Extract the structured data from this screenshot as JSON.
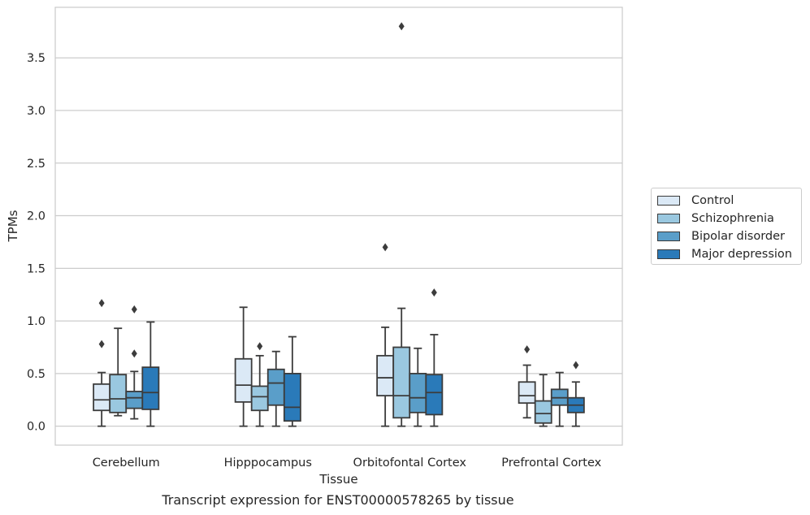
{
  "chart_data": {
    "type": "box",
    "xlabel": "Tissue",
    "ylabel": "TPMs",
    "ylim": [
      -0.18,
      3.98
    ],
    "yticks": [
      "0.0",
      "0.5",
      "1.0",
      "1.5",
      "2.0",
      "2.5",
      "3.0",
      "3.5"
    ],
    "grid": true,
    "legend_position": "right",
    "categories": [
      "Cerebellum",
      "Hipppocampus",
      "Orbitofontal Cortex",
      "Prefrontal Cortex"
    ],
    "series": [
      {
        "name": "Control",
        "color": "#dbe9f6",
        "boxes": [
          {
            "whislo": 0.0,
            "q1": 0.15,
            "median": 0.25,
            "q3": 0.4,
            "whishi": 0.51,
            "fliers": [
              0.78,
              1.17
            ]
          },
          {
            "whislo": 0.0,
            "q1": 0.23,
            "median": 0.39,
            "q3": 0.64,
            "whishi": 1.13,
            "fliers": []
          },
          {
            "whislo": 0.0,
            "q1": 0.29,
            "median": 0.46,
            "q3": 0.67,
            "whishi": 0.94,
            "fliers": [
              1.7
            ]
          },
          {
            "whislo": 0.08,
            "q1": 0.22,
            "median": 0.29,
            "q3": 0.42,
            "whishi": 0.58,
            "fliers": [
              0.73
            ]
          }
        ]
      },
      {
        "name": "Schizophrenia",
        "color": "#9ac8e0",
        "boxes": [
          {
            "whislo": 0.1,
            "q1": 0.13,
            "median": 0.26,
            "q3": 0.49,
            "whishi": 0.93,
            "fliers": []
          },
          {
            "whislo": 0.0,
            "q1": 0.15,
            "median": 0.28,
            "q3": 0.38,
            "whishi": 0.67,
            "fliers": [
              0.76
            ]
          },
          {
            "whislo": 0.0,
            "q1": 0.08,
            "median": 0.29,
            "q3": 0.75,
            "whishi": 1.12,
            "fliers": [
              3.8
            ]
          },
          {
            "whislo": 0.0,
            "q1": 0.03,
            "median": 0.12,
            "q3": 0.24,
            "whishi": 0.49,
            "fliers": []
          }
        ]
      },
      {
        "name": "Bipolar disorder",
        "color": "#5a9ec9",
        "boxes": [
          {
            "whislo": 0.07,
            "q1": 0.17,
            "median": 0.27,
            "q3": 0.33,
            "whishi": 0.52,
            "fliers": [
              0.69,
              1.11
            ]
          },
          {
            "whislo": 0.0,
            "q1": 0.2,
            "median": 0.41,
            "q3": 0.54,
            "whishi": 0.71,
            "fliers": []
          },
          {
            "whislo": 0.0,
            "q1": 0.13,
            "median": 0.27,
            "q3": 0.5,
            "whishi": 0.74,
            "fliers": []
          },
          {
            "whislo": 0.0,
            "q1": 0.2,
            "median": 0.27,
            "q3": 0.35,
            "whishi": 0.51,
            "fliers": []
          }
        ]
      },
      {
        "name": "Major depression",
        "color": "#2a7ab9",
        "boxes": [
          {
            "whislo": 0.0,
            "q1": 0.16,
            "median": 0.32,
            "q3": 0.56,
            "whishi": 0.99,
            "fliers": []
          },
          {
            "whislo": 0.0,
            "q1": 0.05,
            "median": 0.18,
            "q3": 0.5,
            "whishi": 0.85,
            "fliers": []
          },
          {
            "whislo": 0.0,
            "q1": 0.11,
            "median": 0.32,
            "q3": 0.49,
            "whishi": 0.87,
            "fliers": [
              1.27
            ]
          },
          {
            "whislo": 0.0,
            "q1": 0.13,
            "median": 0.2,
            "q3": 0.27,
            "whishi": 0.42,
            "fliers": [
              0.58
            ]
          }
        ]
      }
    ]
  },
  "caption": "Transcript expression for ENST00000578265 by tissue"
}
